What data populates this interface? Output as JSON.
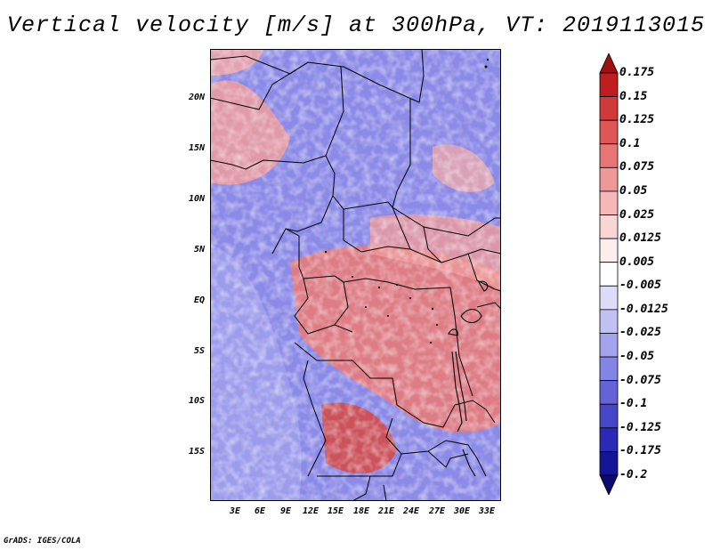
{
  "title": "Vertical velocity [m/s] at 300hPa, VT: 2019113015",
  "footer": "GrADS: IGES/COLA",
  "map": {
    "lat_labels": [
      "20N",
      "15N",
      "10N",
      "5N",
      "EQ",
      "5S",
      "10S",
      "15S"
    ],
    "lon_labels": [
      "3E",
      "6E",
      "9E",
      "12E",
      "15E",
      "18E",
      "21E",
      "24E",
      "27E",
      "30E",
      "33E"
    ]
  },
  "colorbar": {
    "labels": [
      "0.175",
      "0.15",
      "0.125",
      "0.1",
      "0.075",
      "0.05",
      "0.025",
      "0.0125",
      "0.005",
      "-0.005",
      "-0.0125",
      "-0.025",
      "-0.05",
      "-0.075",
      "-0.1",
      "-0.125",
      "-0.175",
      "-0.2"
    ],
    "colors": [
      "#a01010",
      "#c01e1e",
      "#d23a3a",
      "#df5656",
      "#e87676",
      "#ef9898",
      "#f4b8b8",
      "#f9d6d6",
      "#fdeeee",
      "#ffffff",
      "#dcdcf8",
      "#c0c0f2",
      "#a4a4ec",
      "#8484e4",
      "#6464d8",
      "#4646c8",
      "#2a2ab4",
      "#141496",
      "#0a0a70"
    ]
  }
}
